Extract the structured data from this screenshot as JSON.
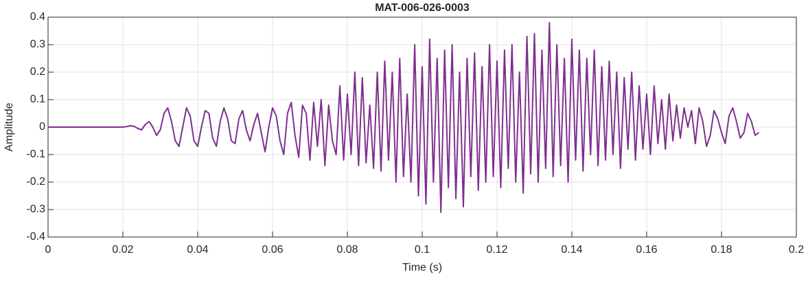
{
  "chart_data": {
    "type": "line",
    "title": "MAT-006-026-0003",
    "x_label": "Time (s)",
    "y_label": "Amplitude",
    "x": [
      0,
      0.001,
      0.002,
      0.003,
      0.004,
      0.005,
      0.006,
      0.007,
      0.008,
      0.009,
      0.01,
      0.011,
      0.012,
      0.013,
      0.014,
      0.015,
      0.016,
      0.017,
      0.018,
      0.019,
      0.02,
      0.021,
      0.022,
      0.023,
      0.024,
      0.025,
      0.026,
      0.027,
      0.028,
      0.029,
      0.03,
      0.031,
      0.032,
      0.033,
      0.034,
      0.035,
      0.036,
      0.037,
      0.038,
      0.039,
      0.04,
      0.041,
      0.042,
      0.043,
      0.044,
      0.045,
      0.046,
      0.047,
      0.048,
      0.049,
      0.05,
      0.051,
      0.052,
      0.053,
      0.054,
      0.055,
      0.056,
      0.057,
      0.058,
      0.059,
      0.06,
      0.061,
      0.062,
      0.063,
      0.064,
      0.065,
      0.066,
      0.067,
      0.068,
      0.069,
      0.07,
      0.071,
      0.072,
      0.073,
      0.074,
      0.075,
      0.076,
      0.077,
      0.078,
      0.079,
      0.08,
      0.081,
      0.082,
      0.083,
      0.084,
      0.085,
      0.086,
      0.087,
      0.088,
      0.089,
      0.09,
      0.091,
      0.092,
      0.093,
      0.094,
      0.095,
      0.096,
      0.097,
      0.098,
      0.099,
      0.1,
      0.101,
      0.102,
      0.103,
      0.104,
      0.105,
      0.106,
      0.107,
      0.108,
      0.109,
      0.11,
      0.111,
      0.112,
      0.113,
      0.114,
      0.115,
      0.116,
      0.117,
      0.118,
      0.119,
      0.12,
      0.121,
      0.122,
      0.123,
      0.124,
      0.125,
      0.126,
      0.127,
      0.128,
      0.129,
      0.13,
      0.131,
      0.132,
      0.133,
      0.134,
      0.135,
      0.136,
      0.137,
      0.138,
      0.139,
      0.14,
      0.141,
      0.142,
      0.143,
      0.144,
      0.145,
      0.146,
      0.147,
      0.148,
      0.149,
      0.15,
      0.151,
      0.152,
      0.153,
      0.154,
      0.155,
      0.156,
      0.157,
      0.158,
      0.159,
      0.16,
      0.161,
      0.162,
      0.163,
      0.164,
      0.165,
      0.166,
      0.167,
      0.168,
      0.169,
      0.17,
      0.171,
      0.172,
      0.173,
      0.174,
      0.175,
      0.176,
      0.177,
      0.178,
      0.179,
      0.18,
      0.181,
      0.182,
      0.183,
      0.184,
      0.185,
      0.186,
      0.187,
      0.188,
      0.189,
      0.19
    ],
    "series": [
      {
        "color": "#7e2f8e",
        "values": [
          0,
          0,
          0,
          0,
          0,
          0,
          0,
          0,
          0,
          0,
          0,
          0,
          0,
          0,
          0,
          0,
          0,
          0,
          0,
          0,
          0,
          0.002,
          0.005,
          0.003,
          -0.005,
          -0.01,
          0.01,
          0.02,
          0.0,
          -0.03,
          -0.01,
          0.05,
          0.07,
          0.02,
          -0.05,
          -0.07,
          0.0,
          0.07,
          0.04,
          -0.05,
          -0.07,
          0.0,
          0.06,
          0.05,
          -0.04,
          -0.07,
          0.02,
          0.07,
          0.03,
          -0.05,
          -0.06,
          0.03,
          0.06,
          -0.01,
          -0.05,
          0.01,
          0.05,
          -0.02,
          -0.09,
          0.0,
          0.07,
          0.04,
          -0.05,
          -0.1,
          0.05,
          0.09,
          -0.03,
          -0.11,
          0.08,
          0.05,
          -0.12,
          0.09,
          -0.07,
          0.1,
          -0.14,
          0.08,
          -0.05,
          -0.1,
          0.15,
          -0.12,
          0.12,
          -0.1,
          0.2,
          -0.14,
          0.18,
          -0.13,
          0.08,
          -0.15,
          0.2,
          -0.16,
          0.24,
          -0.12,
          0.2,
          -0.2,
          0.25,
          -0.18,
          0.12,
          -0.2,
          0.3,
          -0.25,
          0.22,
          -0.28,
          0.32,
          -0.2,
          0.25,
          -0.31,
          0.28,
          -0.22,
          0.3,
          -0.26,
          0.2,
          -0.29,
          0.25,
          -0.18,
          0.27,
          -0.23,
          0.22,
          -0.2,
          0.3,
          -0.18,
          0.24,
          -0.22,
          0.28,
          -0.15,
          0.3,
          -0.2,
          0.2,
          -0.24,
          0.33,
          -0.17,
          0.34,
          -0.2,
          0.28,
          -0.15,
          0.38,
          -0.18,
          0.3,
          -0.14,
          0.25,
          -0.2,
          0.32,
          -0.12,
          0.28,
          -0.16,
          0.25,
          -0.1,
          0.28,
          -0.14,
          0.22,
          -0.12,
          0.24,
          -0.1,
          0.2,
          -0.15,
          0.18,
          -0.08,
          0.2,
          -0.12,
          0.15,
          -0.08,
          0.12,
          -0.1,
          0.15,
          -0.06,
          0.1,
          -0.08,
          0.12,
          -0.05,
          0.08,
          -0.04,
          0.07,
          0.0,
          0.06,
          -0.06,
          0.07,
          0.02,
          -0.07,
          -0.03,
          0.06,
          0.03,
          -0.02,
          -0.06,
          0.04,
          0.07,
          0.02,
          -0.04,
          -0.02,
          0.05,
          0.02,
          -0.03,
          -0.02
        ]
      }
    ],
    "xlim": [
      0,
      0.2
    ],
    "xticks": [
      0,
      0.02,
      0.04,
      0.06,
      0.08,
      0.1,
      0.12,
      0.14,
      0.16,
      0.18,
      0.2
    ],
    "ylim": [
      -0.4,
      0.4
    ],
    "yticks": [
      -0.4,
      -0.3,
      -0.2,
      -0.1,
      0,
      0.1,
      0.2,
      0.3,
      0.4
    ],
    "grid": true
  }
}
